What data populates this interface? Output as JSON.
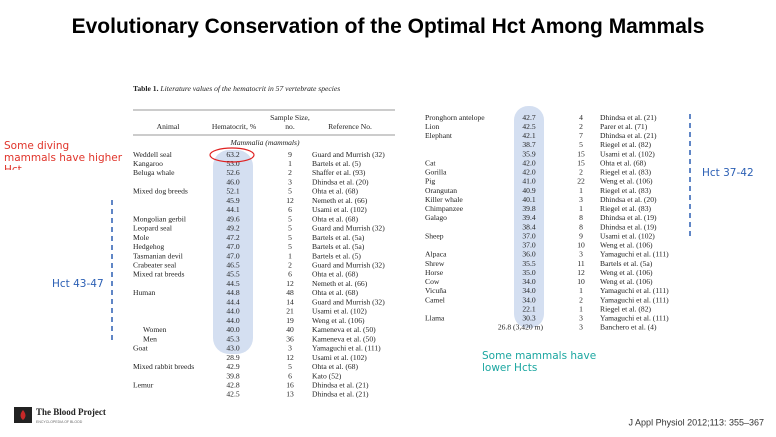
{
  "header": {
    "title": "Evolutionary Conservation of the Optimal Hct Among Mammals"
  },
  "table": {
    "caption_label": "Table 1.",
    "caption": "Literature values of the hematocrit in 57 vertebrate species",
    "columns": [
      "Animal",
      "Hematocrit, %",
      "Sample Size, no.",
      "Reference No."
    ],
    "group": "Mammalia (mammals)",
    "rows": [
      {
        "animal": "Weddell seal",
        "hct": "63.2",
        "n": 9,
        "ref": "Guard and Murrish (32)"
      },
      {
        "animal": "Kangaroo",
        "hct": "53.0",
        "n": 1,
        "ref": "Bartels et al. (5)"
      },
      {
        "animal": "Beluga whale",
        "hct": "52.6",
        "n": 2,
        "ref": "Shaffer et al. (93)"
      },
      {
        "hct": "46.0",
        "n": 3,
        "ref": "Dhindsa et al. (20)"
      },
      {
        "animal": "Mixed dog breeds",
        "hct": "52.1",
        "n": 5,
        "ref": "Ohta et al. (68)"
      },
      {
        "hct": "45.9",
        "n": 12,
        "ref": "Nemeth et al. (66)"
      },
      {
        "hct": "44.1",
        "n": 6,
        "ref": "Usami et al. (102)"
      },
      {
        "animal": "Mongolian gerbil",
        "hct": "49.6",
        "n": 5,
        "ref": "Ohta et al. (68)"
      },
      {
        "animal": "Leopard seal",
        "hct": "49.2",
        "n": 5,
        "ref": "Guard and Murrish (32)"
      },
      {
        "animal": "Mole",
        "hct": "47.2",
        "n": 5,
        "ref": "Bartels et al. (5a)"
      },
      {
        "animal": "Hedgehog",
        "hct": "47.0",
        "n": 5,
        "ref": "Bartels et al. (5a)"
      },
      {
        "animal": "Tasmanian devil",
        "hct": "47.0",
        "n": 1,
        "ref": "Bartels et al. (5)"
      },
      {
        "animal": "Crabeater seal",
        "hct": "46.5",
        "n": 2,
        "ref": "Guard and Murrish (32)"
      },
      {
        "animal": "Mixed rat breeds",
        "hct": "45.5",
        "n": 6,
        "ref": "Ohta et al. (68)"
      },
      {
        "hct": "44.5",
        "n": 12,
        "ref": "Nemeth et al. (66)"
      },
      {
        "animal": "Human",
        "hct": "44.8",
        "n": 48,
        "ref": "Ohta et al. (68)"
      },
      {
        "hct": "44.4",
        "n": 14,
        "ref": "Guard and Murrish (32)"
      },
      {
        "hct": "44.0",
        "n": 21,
        "ref": "Usami et al. (102)"
      },
      {
        "hct": "44.0",
        "n": 19,
        "ref": "Weng et al. (106)"
      },
      {
        "animal": "Women",
        "hct": "40.0",
        "n": 40,
        "ref": "Kameneva et al. (50)"
      },
      {
        "animal": "Men",
        "hct": "45.3",
        "n": 36,
        "ref": "Kameneva et al. (50)"
      },
      {
        "animal": "Goat",
        "hct": "43.0",
        "n": 3,
        "ref": "Yamaguchi et al. (111)"
      },
      {
        "hct": "28.9",
        "n": 12,
        "ref": "Usami et al. (102)"
      },
      {
        "animal": "Mixed rabbit breeds",
        "hct": "42.9",
        "n": 5,
        "ref": "Ohta et al. (68)"
      },
      {
        "hct": "39.8",
        "n": 6,
        "ref": "Kato (52)"
      },
      {
        "animal": "Lemur",
        "hct": "42.8",
        "n": 16,
        "ref": "Dhindsa et al. (21)"
      },
      {
        "hct": "42.5",
        "n": 13,
        "ref": "Dhindsa et al. (21)"
      }
    ],
    "rows_continued": [
      {
        "animal": "Pronghorn antelope",
        "hct": "42.7",
        "n": 4,
        "ref": "Dhindsa et al. (21)"
      },
      {
        "animal": "Lion",
        "hct": "42.5",
        "n": 2,
        "ref": "Parer et al. (71)"
      },
      {
        "animal": "Elephant",
        "hct": "42.1",
        "n": 7,
        "ref": "Dhindsa et al. (21)"
      },
      {
        "hct": "38.7",
        "n": 5,
        "ref": "Riegel et al. (82)"
      },
      {
        "hct": "35.9",
        "n": 15,
        "ref": "Usami et al. (102)"
      },
      {
        "animal": "Cat",
        "hct": "42.0",
        "n": 15,
        "ref": "Ohta et al. (68)"
      },
      {
        "animal": "Gorilla",
        "hct": "42.0",
        "n": 2,
        "ref": "Riegel et al. (83)"
      },
      {
        "animal": "Pig",
        "hct": "41.0",
        "n": 22,
        "ref": "Weng et al. (106)"
      },
      {
        "animal": "Orangutan",
        "hct": "40.9",
        "n": 1,
        "ref": "Riegel et al. (83)"
      },
      {
        "animal": "Killer whale",
        "hct": "40.1",
        "n": 3,
        "ref": "Dhindsa et al. (20)"
      },
      {
        "animal": "Chimpanzee",
        "hct": "39.8",
        "n": 1,
        "ref": "Riegel et al. (83)"
      },
      {
        "animal": "Galago",
        "hct": "39.4",
        "n": 8,
        "ref": "Dhindsa et al. (19)"
      },
      {
        "hct": "38.4",
        "n": 8,
        "ref": "Dhindsa et al. (19)"
      },
      {
        "animal": "Sheep",
        "hct": "37.0",
        "n": 9,
        "ref": "Usami et al. (102)"
      },
      {
        "hct": "37.0",
        "n": 10,
        "ref": "Weng et al. (106)"
      },
      {
        "animal": "Alpaca",
        "hct": "36.0",
        "n": 3,
        "ref": "Yamaguchi et al. (111)"
      },
      {
        "animal": "Shrew",
        "hct": "35.5",
        "n": 11,
        "ref": "Bartels et al. (5a)"
      },
      {
        "animal": "Horse",
        "hct": "35.0",
        "n": 12,
        "ref": "Weng et al. (106)"
      },
      {
        "animal": "Cow",
        "hct": "34.0",
        "n": 10,
        "ref": "Weng et al. (106)"
      },
      {
        "animal": "Vicuña",
        "hct": "34.0",
        "n": 1,
        "ref": "Yamaguchi et al. (111)"
      },
      {
        "animal": "Camel",
        "hct": "34.0",
        "n": 2,
        "ref": "Yamaguchi et al. (111)"
      },
      {
        "hct": "22.1",
        "n": 1,
        "ref": "Riegel et al. (82)"
      },
      {
        "animal": "Llama",
        "hct": "30.3",
        "n": 3,
        "ref": "Yamaguchi et al. (111)"
      },
      {
        "hct": "26.8 (3,420 m)",
        "n": 3,
        "ref": "Banchero et al. (4)"
      }
    ]
  },
  "annotations": {
    "diving": "Some diving mammals have higher Hct",
    "hct_43_47": "Hct 43-47",
    "hct_37_42": "Hct 37-42",
    "lower": "Some mammals have lower Hcts"
  },
  "footer": {
    "logo": "The Blood Project",
    "logo_sub": "ENCYCLOPEDIA OF BLOOD",
    "citation": "J Appl Physiol 2012;113: 355–367"
  }
}
